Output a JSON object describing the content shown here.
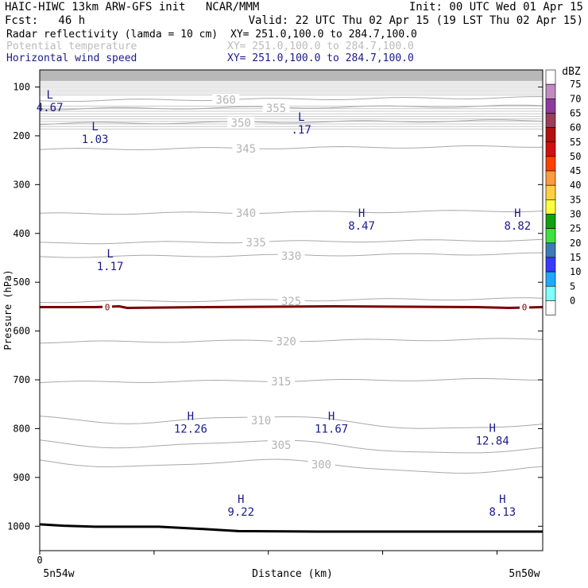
{
  "header": {
    "title_left": "HAIC-HIWC 13km ARW-GFS init   NCAR/MMM",
    "init": "Init: 00 UTC Wed 01 Apr 15",
    "fcst": "Fcst:   46 h",
    "valid": "Valid: 22 UTC Thu 02 Apr 15 (19 LST Thu 02 Apr 15)",
    "fields": [
      {
        "name": "Radar reflectivity (lamda = 10 cm)",
        "xy": "XY= 251.0,100.0 to 284.7,100.0",
        "color": "#000000"
      },
      {
        "name": "Potential temperature",
        "xy": "XY= 251.0,100.0 to 284.7,100.0",
        "color": "#bbbbbb"
      },
      {
        "name": "Horizontal wind speed",
        "xy": "XY= 251.0,100.0 to 284.7,100.0",
        "color": "#1a1a8c"
      }
    ]
  },
  "chart_data": {
    "type": "cross-section",
    "xlabel": "Distance (km)",
    "ylabel": "Pressure (hPa)",
    "x_tick_labels": [
      "0"
    ],
    "x_end_labels": [
      "5n54w",
      "5n50w"
    ],
    "y_ticks": [
      100,
      200,
      300,
      400,
      500,
      600,
      700,
      800,
      900,
      1000
    ],
    "ylim": [
      1050,
      65
    ],
    "colorbar": {
      "unit": "dBZ",
      "levels": [
        75,
        70,
        65,
        60,
        55,
        50,
        45,
        40,
        35,
        30,
        25,
        20,
        15,
        10,
        5,
        0
      ],
      "colors": [
        "#ffffff",
        "#c18ac1",
        "#8c3c9a",
        "#9a3c5a",
        "#b01010",
        "#d01010",
        "#ff4000",
        "#ff9a40",
        "#ffd040",
        "#ffff40",
        "#10a010",
        "#40e040",
        "#3a7ab8",
        "#3a3aff",
        "#20a8ff",
        "#80ffff",
        "#ffffff"
      ]
    },
    "theta_contours": [
      {
        "label": "360",
        "p": 128
      },
      {
        "label": "355",
        "p": 145
      },
      {
        "label": "350",
        "p": 175
      },
      {
        "label": "345",
        "p": 228
      },
      {
        "label": "340",
        "p": 360
      },
      {
        "label": "335",
        "p": 420
      },
      {
        "label": "330",
        "p": 448
      },
      {
        "label": "325",
        "p": 540
      },
      {
        "label": "320",
        "p": 623
      },
      {
        "label": "315",
        "p": 705
      },
      {
        "label": "310",
        "p": 785
      },
      {
        "label": "305",
        "p": 835
      },
      {
        "label": "300",
        "p": 875
      }
    ],
    "freezing_level": {
      "label": "0",
      "p": 551
    },
    "wind_extrema": [
      {
        "type": "L",
        "value": "4.67",
        "x": 0.02,
        "p": 150
      },
      {
        "type": "L",
        "value": "1.03",
        "x": 0.11,
        "p": 215
      },
      {
        "type": "L",
        "value": ".17",
        "x": 0.52,
        "p": 195
      },
      {
        "type": "H",
        "value": "8.47",
        "x": 0.64,
        "p": 392
      },
      {
        "type": "H",
        "value": "8.82",
        "x": 0.95,
        "p": 392
      },
      {
        "type": "L",
        "value": "1.17",
        "x": 0.14,
        "p": 475
      },
      {
        "type": "H",
        "value": "12.26",
        "x": 0.3,
        "p": 808
      },
      {
        "type": "H",
        "value": "11.67",
        "x": 0.58,
        "p": 808
      },
      {
        "type": "H",
        "value": "12.84",
        "x": 0.9,
        "p": 833
      },
      {
        "type": "H",
        "value": "9.22",
        "x": 0.4,
        "p": 978
      },
      {
        "type": "H",
        "value": "8.13",
        "x": 0.92,
        "p": 978
      }
    ]
  }
}
